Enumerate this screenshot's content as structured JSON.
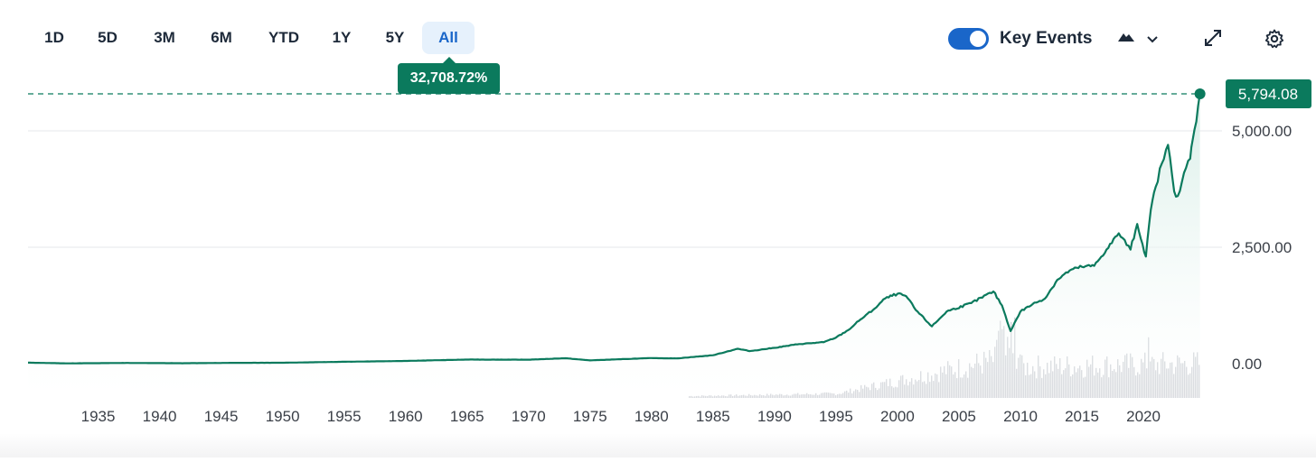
{
  "toolbar": {
    "ranges": [
      "1D",
      "5D",
      "3M",
      "6M",
      "YTD",
      "1Y",
      "5Y",
      "All"
    ],
    "active_range": "All",
    "key_events_label": "Key Events",
    "key_events_on": true,
    "icons": [
      "mountain-chart-icon",
      "chevron-down-icon",
      "expand-icon",
      "gear-icon"
    ]
  },
  "tooltip": {
    "text": "32,708.72%"
  },
  "chart_data": {
    "type": "area",
    "last_value": 5794.08,
    "last_value_label": "5,794.08",
    "ylim": [
      0,
      5794.08
    ],
    "y_ticks": [
      0,
      2500,
      5000
    ],
    "y_tick_labels": [
      "0.00",
      "2,500.00",
      "5,000.00"
    ],
    "x_tick_labels": [
      "1935",
      "1940",
      "1945",
      "1950",
      "1955",
      "1960",
      "1965",
      "1970",
      "1975",
      "1980",
      "1985",
      "1990",
      "1995",
      "2000",
      "2005",
      "2010",
      "2015",
      "2020"
    ],
    "x_range": [
      1929.3,
      2024.7
    ],
    "grid": true,
    "series": [
      {
        "values": [
          [
            1929.3,
            21
          ],
          [
            1932.5,
            6
          ],
          [
            1937,
            15
          ],
          [
            1942,
            9
          ],
          [
            1946,
            17
          ],
          [
            1950,
            20
          ],
          [
            1955,
            40
          ],
          [
            1960,
            58
          ],
          [
            1965,
            88
          ],
          [
            1970,
            85
          ],
          [
            1973,
            116
          ],
          [
            1975,
            70
          ],
          [
            1980,
            120
          ],
          [
            1982,
            112
          ],
          [
            1985,
            180
          ],
          [
            1987,
            320
          ],
          [
            1988,
            270
          ],
          [
            1990,
            340
          ],
          [
            1992,
            420
          ],
          [
            1994,
            460
          ],
          [
            1995,
            560
          ],
          [
            1996,
            720
          ],
          [
            1997,
            950
          ],
          [
            1998,
            1150
          ],
          [
            1999,
            1400
          ],
          [
            2000,
            1500
          ],
          [
            2000.7,
            1450
          ],
          [
            2001.5,
            1150
          ],
          [
            2002.8,
            800
          ],
          [
            2004,
            1120
          ],
          [
            2006,
            1300
          ],
          [
            2007.8,
            1550
          ],
          [
            2008.5,
            1250
          ],
          [
            2009.2,
            700
          ],
          [
            2010,
            1120
          ],
          [
            2011,
            1280
          ],
          [
            2012,
            1400
          ],
          [
            2013,
            1800
          ],
          [
            2014,
            2000
          ],
          [
            2015,
            2080
          ],
          [
            2016,
            2100
          ],
          [
            2017,
            2450
          ],
          [
            2018,
            2800
          ],
          [
            2018.95,
            2450
          ],
          [
            2019.5,
            3000
          ],
          [
            2020.2,
            2300
          ],
          [
            2020.6,
            3300
          ],
          [
            2021,
            3800
          ],
          [
            2021.5,
            4300
          ],
          [
            2022,
            4700
          ],
          [
            2022.5,
            3700
          ],
          [
            2022.8,
            3600
          ],
          [
            2023.3,
            4100
          ],
          [
            2023.8,
            4400
          ],
          [
            2024,
            4800
          ],
          [
            2024.3,
            5200
          ],
          [
            2024.6,
            5794.08
          ]
        ]
      }
    ],
    "colors": {
      "line": "#0b7a5d",
      "area_top": "#d6ede6",
      "grid": "#e5e7eb",
      "volume": "#d0d3d8",
      "text": "#3a3f47"
    }
  }
}
